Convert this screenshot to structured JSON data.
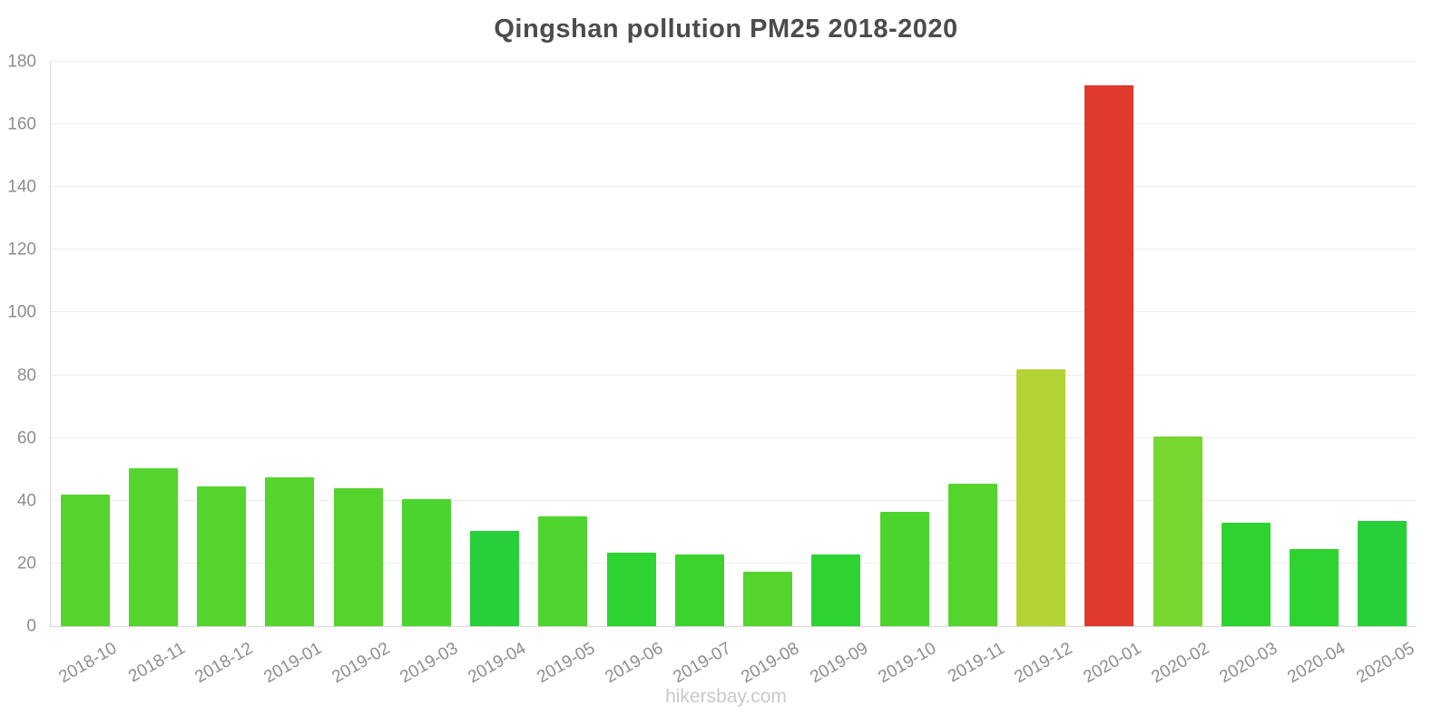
{
  "title": "Qingshan pollution PM25 2018-2020",
  "footer": "hikersbay.com",
  "chart_data": {
    "type": "bar",
    "title": "Qingshan pollution PM25 2018-2020",
    "xlabel": "",
    "ylabel": "",
    "ylim": [
      0,
      180
    ],
    "yticks": [
      0,
      20,
      40,
      60,
      80,
      100,
      120,
      140,
      160,
      180
    ],
    "grid": true,
    "legend": "none",
    "categories": [
      "2018-10",
      "2018-11",
      "2018-12",
      "2019-01",
      "2019-02",
      "2019-03",
      "2019-04",
      "2019-05",
      "2019-06",
      "2019-07",
      "2019-08",
      "2019-09",
      "2019-10",
      "2019-11",
      "2019-12",
      "2020-01",
      "2020-02",
      "2020-03",
      "2020-04",
      "2020-05"
    ],
    "values": [
      42,
      50.5,
      44.5,
      47.5,
      44,
      40.5,
      30.5,
      35,
      23.5,
      23,
      17.5,
      23,
      36.5,
      45.5,
      82,
      172.5,
      60.5,
      33,
      24.5,
      33.5
    ],
    "colors": [
      "#55d42e",
      "#55d42e",
      "#55d42e",
      "#55d42e",
      "#55d42e",
      "#4bd42e",
      "#27cf3a",
      "#4ed42e",
      "#2ed331",
      "#3dd32e",
      "#55d42e",
      "#2ed331",
      "#4bd42e",
      "#55d42e",
      "#b4d334",
      "#e0392e",
      "#77d62f",
      "#2ed331",
      "#2ed331",
      "#27cf3a"
    ],
    "grid_color": "#ededed",
    "axis_color": "#d9d9d9",
    "tick_label_color": "#8e8e8e",
    "title_color": "#4c4c4c"
  }
}
